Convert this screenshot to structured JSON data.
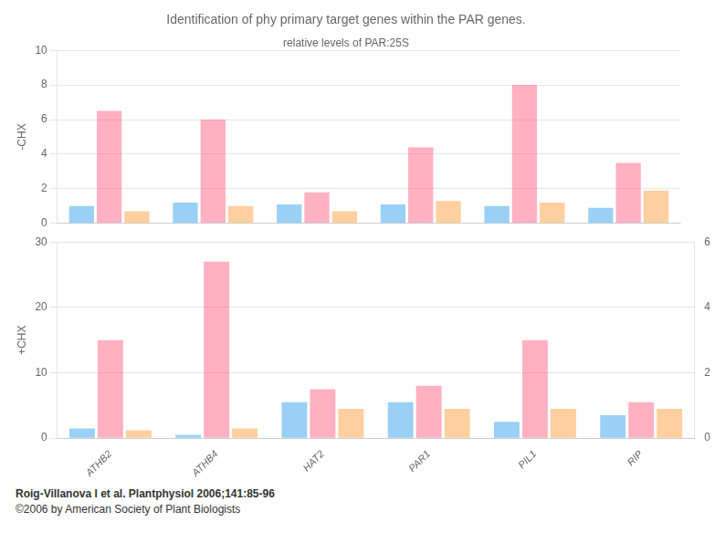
{
  "chart_data": [
    {
      "type": "bar",
      "title": "Identification of phy primary target genes within the PAR genes.",
      "subtitle": "relative levels of PAR:25S",
      "y_label": "-CHX",
      "categories": [
        "ATHB2",
        "ATHB4",
        "HAT2",
        "PAR1",
        "PIL1",
        "RIP"
      ],
      "series": [
        {
          "values": [
            1.0,
            1.2,
            1.1,
            1.1,
            1.0,
            0.9
          ]
        },
        {
          "values": [
            6.5,
            6.0,
            1.8,
            4.4,
            8.0,
            3.5
          ]
        },
        {
          "values": [
            0.7,
            1.0,
            0.7,
            1.3,
            1.2,
            1.9
          ]
        }
      ],
      "ylim": [
        0,
        10
      ],
      "yticks": [
        0,
        2,
        4,
        6,
        8,
        10
      ],
      "grid": true,
      "tick_labels": "y"
    },
    {
      "type": "bar",
      "y_label": "+CHX",
      "categories": [
        "ATHB2",
        "ATHB4",
        "HAT2",
        "PAR1",
        "PIL1",
        "RIP"
      ],
      "series": [
        {
          "values": [
            1.5,
            0.5,
            5.5,
            5.5,
            2.5,
            3.5
          ]
        },
        {
          "values": [
            15.0,
            27.0,
            7.5,
            8.0,
            15.0,
            5.5
          ]
        },
        {
          "values": [
            1.2,
            1.5,
            4.5,
            4.5,
            4.5,
            4.5
          ]
        }
      ],
      "ylim": [
        0,
        30
      ],
      "yticks": [
        0,
        10,
        20,
        30
      ],
      "y2lim": [
        0,
        6
      ],
      "y2ticks": [
        0,
        2,
        4,
        6
      ],
      "grid": true,
      "annotations": [
        "Roig-Villanova I et al. Plantphysiol 2006;141:85-96",
        "©2006 by American Society of Plant Biologists"
      ]
    }
  ]
}
